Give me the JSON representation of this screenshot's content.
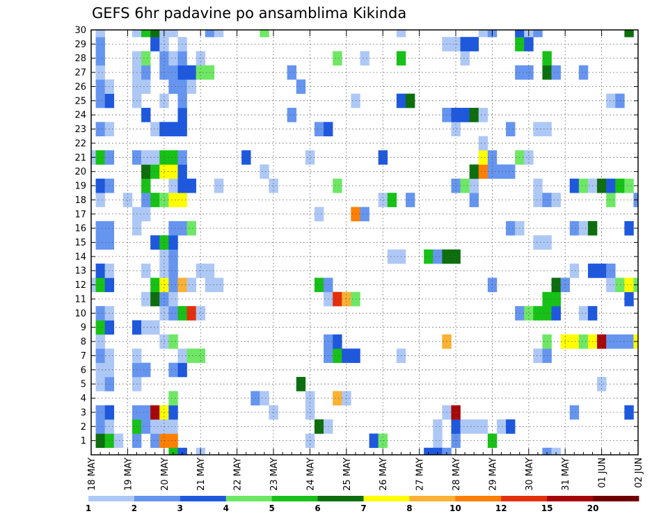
{
  "chart_data": {
    "type": "heatmap",
    "title": "GEFS 6hr padavine po ansamblima Kikinda",
    "x_tick_labels": [
      "18 MAY",
      "19 MAY",
      "20 MAY",
      "21 MAY",
      "22 MAY",
      "23 MAY",
      "24 MAY",
      "25 MAY",
      "26 MAY",
      "27 MAY",
      "28 MAY",
      "29 MAY",
      "30 MAY",
      "31 MAY",
      "01 JUN",
      "02 JUN"
    ],
    "y_tick_labels": [
      "1",
      "2",
      "3",
      "4",
      "5",
      "6",
      "7",
      "8",
      "9",
      "10",
      "11",
      "12",
      "13",
      "14",
      "15",
      "16",
      "17",
      "18",
      "19",
      "20",
      "21",
      "22",
      "23",
      "24",
      "25",
      "26",
      "27",
      "28",
      "29",
      "30"
    ],
    "x_range": [
      0,
      60
    ],
    "y_range": [
      0,
      30
    ],
    "grid": "dotted",
    "colorbar": {
      "placement": "bottom",
      "labels": [
        "1",
        "2",
        "3",
        "4",
        "5",
        "6",
        "7",
        "8",
        "10",
        "12",
        "15",
        "20"
      ],
      "colors": [
        "#aec8f6",
        "#6695f0",
        "#1e58de",
        "#6ee864",
        "#17c117",
        "#0d6e0d",
        "#ffff00",
        "#fbb133",
        "#ff7f00",
        "#e42f0a",
        "#a80606",
        "#700000"
      ]
    },
    "cells": [
      [
        1,
        1,
        5
      ],
      [
        1,
        2,
        4
      ],
      [
        1,
        3,
        0
      ],
      [
        1,
        5,
        1
      ],
      [
        1,
        7,
        1
      ],
      [
        1,
        8,
        8
      ],
      [
        1,
        9,
        8
      ],
      [
        1,
        24,
        0
      ],
      [
        1,
        31,
        2
      ],
      [
        1,
        32,
        3
      ],
      [
        1,
        38,
        0
      ],
      [
        1,
        40,
        1
      ],
      [
        1,
        44,
        4
      ],
      [
        2,
        1,
        1
      ],
      [
        2,
        2,
        0
      ],
      [
        2,
        5,
        4
      ],
      [
        2,
        6,
        1
      ],
      [
        2,
        7,
        0
      ],
      [
        2,
        8,
        0
      ],
      [
        2,
        9,
        0
      ],
      [
        2,
        25,
        5
      ],
      [
        2,
        26,
        0
      ],
      [
        2,
        38,
        0
      ],
      [
        2,
        40,
        2
      ],
      [
        2,
        41,
        0
      ],
      [
        2,
        42,
        0
      ],
      [
        2,
        43,
        0
      ],
      [
        2,
        45,
        0
      ],
      [
        2,
        46,
        2
      ],
      [
        3,
        1,
        1
      ],
      [
        3,
        2,
        2
      ],
      [
        3,
        5,
        1
      ],
      [
        3,
        6,
        1
      ],
      [
        3,
        7,
        10
      ],
      [
        3,
        8,
        6
      ],
      [
        3,
        9,
        2
      ],
      [
        3,
        20,
        0
      ],
      [
        3,
        24,
        0
      ],
      [
        3,
        39,
        0
      ],
      [
        3,
        40,
        10
      ],
      [
        3,
        53,
        1
      ],
      [
        3,
        59,
        2
      ],
      [
        4,
        9,
        3
      ],
      [
        4,
        18,
        1
      ],
      [
        4,
        19,
        0
      ],
      [
        4,
        24,
        0
      ],
      [
        4,
        27,
        7
      ],
      [
        4,
        28,
        0
      ],
      [
        5,
        1,
        0
      ],
      [
        5,
        2,
        1
      ],
      [
        5,
        5,
        0
      ],
      [
        5,
        23,
        5
      ],
      [
        5,
        56,
        0
      ],
      [
        6,
        1,
        0
      ],
      [
        6,
        2,
        0
      ],
      [
        6,
        5,
        1
      ],
      [
        6,
        6,
        1
      ],
      [
        6,
        9,
        1
      ],
      [
        6,
        10,
        2
      ],
      [
        7,
        1,
        1
      ],
      [
        7,
        2,
        0
      ],
      [
        7,
        5,
        0
      ],
      [
        7,
        10,
        0
      ],
      [
        7,
        11,
        3
      ],
      [
        7,
        12,
        3
      ],
      [
        7,
        26,
        1
      ],
      [
        7,
        27,
        4
      ],
      [
        7,
        28,
        2
      ],
      [
        7,
        29,
        2
      ],
      [
        7,
        34,
        0
      ],
      [
        7,
        49,
        0
      ],
      [
        7,
        50,
        1
      ],
      [
        8,
        1,
        0
      ],
      [
        8,
        8,
        0
      ],
      [
        8,
        9,
        3
      ],
      [
        8,
        26,
        1
      ],
      [
        8,
        27,
        2
      ],
      [
        8,
        39,
        7
      ],
      [
        8,
        50,
        3
      ],
      [
        8,
        52,
        6
      ],
      [
        8,
        53,
        6
      ],
      [
        8,
        54,
        3
      ],
      [
        8,
        55,
        6
      ],
      [
        8,
        56,
        10
      ],
      [
        8,
        57,
        1
      ],
      [
        8,
        58,
        1
      ],
      [
        8,
        59,
        1
      ],
      [
        8,
        60,
        6
      ],
      [
        9,
        1,
        4
      ],
      [
        9,
        2,
        2
      ],
      [
        9,
        5,
        2
      ],
      [
        9,
        6,
        0
      ],
      [
        9,
        7,
        0
      ],
      [
        10,
        1,
        1
      ],
      [
        10,
        2,
        0
      ],
      [
        10,
        8,
        0
      ],
      [
        10,
        9,
        1
      ],
      [
        10,
        10,
        4
      ],
      [
        10,
        11,
        9
      ],
      [
        10,
        12,
        0
      ],
      [
        10,
        47,
        1
      ],
      [
        10,
        48,
        3
      ],
      [
        10,
        49,
        4
      ],
      [
        10,
        50,
        4
      ],
      [
        10,
        51,
        2
      ],
      [
        10,
        54,
        0
      ],
      [
        10,
        55,
        2
      ],
      [
        11,
        6,
        0
      ],
      [
        11,
        7,
        5
      ],
      [
        11,
        8,
        1
      ],
      [
        11,
        9,
        0
      ],
      [
        11,
        26,
        0
      ],
      [
        11,
        27,
        9
      ],
      [
        11,
        28,
        7
      ],
      [
        11,
        29,
        3
      ],
      [
        11,
        50,
        4
      ],
      [
        11,
        51,
        4
      ],
      [
        11,
        59,
        2
      ],
      [
        12,
        0,
        0
      ],
      [
        12,
        1,
        4
      ],
      [
        12,
        2,
        2
      ],
      [
        12,
        7,
        4
      ],
      [
        12,
        8,
        6
      ],
      [
        12,
        9,
        1
      ],
      [
        12,
        10,
        7
      ],
      [
        12,
        11,
        0
      ],
      [
        12,
        13,
        0
      ],
      [
        12,
        14,
        0
      ],
      [
        12,
        25,
        4
      ],
      [
        12,
        26,
        1
      ],
      [
        12,
        44,
        1
      ],
      [
        12,
        51,
        5
      ],
      [
        12,
        52,
        1
      ],
      [
        12,
        57,
        0
      ],
      [
        12,
        58,
        3
      ],
      [
        12,
        59,
        6
      ],
      [
        12,
        60,
        3
      ],
      [
        13,
        1,
        2
      ],
      [
        13,
        2,
        0
      ],
      [
        13,
        6,
        0
      ],
      [
        13,
        8,
        0
      ],
      [
        13,
        9,
        1
      ],
      [
        13,
        12,
        0
      ],
      [
        13,
        13,
        0
      ],
      [
        13,
        53,
        0
      ],
      [
        13,
        55,
        2
      ],
      [
        13,
        56,
        2
      ],
      [
        13,
        57,
        1
      ],
      [
        14,
        8,
        0
      ],
      [
        14,
        9,
        1
      ],
      [
        14,
        33,
        0
      ],
      [
        14,
        34,
        0
      ],
      [
        14,
        37,
        4
      ],
      [
        14,
        38,
        1
      ],
      [
        14,
        39,
        5
      ],
      [
        14,
        40,
        5
      ],
      [
        15,
        1,
        1
      ],
      [
        15,
        2,
        1
      ],
      [
        15,
        7,
        2
      ],
      [
        15,
        8,
        4
      ],
      [
        15,
        9,
        2
      ],
      [
        15,
        49,
        0
      ],
      [
        15,
        50,
        0
      ],
      [
        16,
        1,
        1
      ],
      [
        16,
        2,
        1
      ],
      [
        16,
        5,
        0
      ],
      [
        16,
        9,
        1
      ],
      [
        16,
        10,
        1
      ],
      [
        16,
        11,
        3
      ],
      [
        16,
        46,
        1
      ],
      [
        16,
        47,
        0
      ],
      [
        16,
        53,
        1
      ],
      [
        16,
        54,
        0
      ],
      [
        16,
        55,
        5
      ],
      [
        16,
        59,
        2
      ],
      [
        17,
        5,
        0
      ],
      [
        17,
        6,
        0
      ],
      [
        17,
        25,
        0
      ],
      [
        17,
        29,
        8
      ],
      [
        17,
        30,
        1
      ],
      [
        18,
        1,
        0
      ],
      [
        18,
        4,
        0
      ],
      [
        18,
        6,
        1
      ],
      [
        18,
        7,
        4
      ],
      [
        18,
        8,
        3
      ],
      [
        18,
        9,
        6
      ],
      [
        18,
        10,
        6
      ],
      [
        18,
        32,
        0
      ],
      [
        18,
        33,
        4
      ],
      [
        18,
        35,
        1
      ],
      [
        18,
        42,
        1
      ],
      [
        18,
        49,
        0
      ],
      [
        18,
        50,
        1
      ],
      [
        18,
        51,
        0
      ],
      [
        18,
        57,
        3
      ],
      [
        18,
        60,
        1
      ],
      [
        19,
        1,
        2
      ],
      [
        19,
        2,
        1
      ],
      [
        19,
        6,
        4
      ],
      [
        19,
        9,
        0
      ],
      [
        19,
        10,
        2
      ],
      [
        19,
        11,
        2
      ],
      [
        19,
        14,
        0
      ],
      [
        19,
        20,
        0
      ],
      [
        19,
        27,
        3
      ],
      [
        19,
        40,
        1
      ],
      [
        19,
        41,
        3
      ],
      [
        19,
        42,
        0
      ],
      [
        19,
        49,
        0
      ],
      [
        19,
        53,
        2
      ],
      [
        19,
        54,
        3
      ],
      [
        19,
        55,
        0
      ],
      [
        19,
        56,
        5
      ],
      [
        19,
        57,
        2
      ],
      [
        19,
        58,
        4
      ],
      [
        19,
        59,
        3
      ],
      [
        20,
        6,
        5
      ],
      [
        20,
        7,
        4
      ],
      [
        20,
        8,
        6
      ],
      [
        20,
        9,
        6
      ],
      [
        20,
        10,
        2
      ],
      [
        20,
        19,
        0
      ],
      [
        20,
        42,
        5
      ],
      [
        20,
        43,
        8
      ],
      [
        20,
        44,
        1
      ],
      [
        20,
        45,
        1
      ],
      [
        20,
        46,
        1
      ],
      [
        21,
        0,
        0
      ],
      [
        21,
        1,
        4
      ],
      [
        21,
        2,
        1
      ],
      [
        21,
        5,
        1
      ],
      [
        21,
        6,
        0
      ],
      [
        21,
        7,
        0
      ],
      [
        21,
        8,
        4
      ],
      [
        21,
        9,
        4
      ],
      [
        21,
        10,
        1
      ],
      [
        21,
        17,
        2
      ],
      [
        21,
        24,
        0
      ],
      [
        21,
        32,
        2
      ],
      [
        21,
        43,
        6
      ],
      [
        21,
        44,
        1
      ],
      [
        21,
        47,
        3
      ],
      [
        21,
        48,
        0
      ],
      [
        22,
        43,
        0
      ],
      [
        23,
        1,
        1
      ],
      [
        23,
        2,
        0
      ],
      [
        23,
        7,
        0
      ],
      [
        23,
        8,
        2
      ],
      [
        23,
        9,
        2
      ],
      [
        23,
        10,
        2
      ],
      [
        23,
        25,
        1
      ],
      [
        23,
        26,
        2
      ],
      [
        23,
        40,
        0
      ],
      [
        23,
        46,
        1
      ],
      [
        23,
        49,
        0
      ],
      [
        23,
        50,
        0
      ],
      [
        24,
        6,
        2
      ],
      [
        24,
        10,
        2
      ],
      [
        24,
        22,
        1
      ],
      [
        24,
        39,
        1
      ],
      [
        24,
        40,
        2
      ],
      [
        24,
        41,
        2
      ],
      [
        24,
        42,
        5
      ],
      [
        24,
        43,
        0
      ],
      [
        25,
        1,
        1
      ],
      [
        25,
        2,
        2
      ],
      [
        25,
        5,
        0
      ],
      [
        25,
        8,
        0
      ],
      [
        25,
        10,
        1
      ],
      [
        25,
        29,
        0
      ],
      [
        25,
        34,
        2
      ],
      [
        25,
        35,
        5
      ],
      [
        25,
        57,
        0
      ],
      [
        25,
        58,
        1
      ],
      [
        26,
        1,
        1
      ],
      [
        26,
        2,
        0
      ],
      [
        26,
        5,
        0
      ],
      [
        26,
        6,
        0
      ],
      [
        26,
        9,
        1
      ],
      [
        26,
        10,
        1
      ],
      [
        26,
        11,
        0
      ],
      [
        26,
        23,
        1
      ],
      [
        27,
        1,
        0
      ],
      [
        27,
        5,
        0
      ],
      [
        27,
        6,
        1
      ],
      [
        27,
        8,
        1
      ],
      [
        27,
        9,
        1
      ],
      [
        27,
        10,
        2
      ],
      [
        27,
        11,
        2
      ],
      [
        27,
        12,
        3
      ],
      [
        27,
        13,
        3
      ],
      [
        27,
        22,
        1
      ],
      [
        27,
        47,
        1
      ],
      [
        27,
        48,
        1
      ],
      [
        27,
        50,
        5
      ],
      [
        27,
        51,
        1
      ],
      [
        27,
        54,
        1
      ],
      [
        28,
        1,
        1
      ],
      [
        28,
        5,
        0
      ],
      [
        28,
        6,
        3
      ],
      [
        28,
        8,
        1
      ],
      [
        28,
        9,
        0
      ],
      [
        28,
        10,
        1
      ],
      [
        28,
        12,
        0
      ],
      [
        28,
        27,
        3
      ],
      [
        28,
        30,
        0
      ],
      [
        28,
        34,
        4
      ],
      [
        28,
        41,
        0
      ],
      [
        28,
        50,
        4
      ],
      [
        29,
        1,
        1
      ],
      [
        29,
        7,
        2
      ],
      [
        29,
        8,
        0
      ],
      [
        29,
        10,
        0
      ],
      [
        29,
        39,
        0
      ],
      [
        29,
        40,
        0
      ],
      [
        29,
        41,
        2
      ],
      [
        29,
        42,
        2
      ],
      [
        29,
        47,
        4
      ],
      [
        29,
        48,
        2
      ],
      [
        30,
        1,
        0
      ],
      [
        30,
        5,
        0
      ],
      [
        30,
        6,
        4
      ],
      [
        30,
        7,
        5
      ],
      [
        30,
        8,
        0
      ],
      [
        30,
        9,
        0
      ],
      [
        30,
        13,
        1
      ],
      [
        30,
        14,
        0
      ],
      [
        30,
        19,
        3
      ],
      [
        30,
        34,
        0
      ],
      [
        30,
        43,
        0
      ],
      [
        30,
        44,
        1
      ],
      [
        30,
        47,
        2
      ],
      [
        30,
        48,
        0
      ],
      [
        30,
        49,
        1
      ],
      [
        30,
        59,
        5
      ],
      [
        0,
        9,
        4
      ],
      [
        0,
        10,
        2
      ],
      [
        0,
        12,
        0
      ],
      [
        0,
        37,
        2
      ],
      [
        0,
        38,
        2
      ],
      [
        0,
        39,
        1
      ],
      [
        0,
        50,
        1
      ],
      [
        0,
        51,
        0
      ]
    ]
  }
}
